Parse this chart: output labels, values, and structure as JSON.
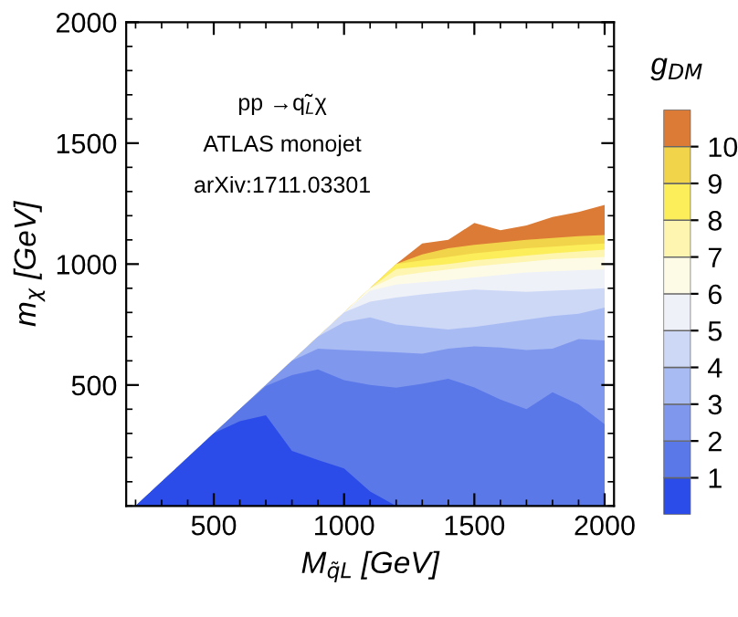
{
  "chart_data": {
    "type": "area",
    "xlabel": "M$_{q̃L}$ [GeV]",
    "ylabel": "m$_{χ}$ [GeV]",
    "legend_title": "g$_{DM}$",
    "annotations": [
      "pp →q̃$_{L}$χ",
      "ATLAS monojet",
      "arXiv:1711.03301"
    ],
    "x": [
      200,
      300,
      400,
      500,
      600,
      700,
      800,
      900,
      1000,
      1100,
      1200,
      1300,
      1400,
      1500,
      1600,
      1700,
      1800,
      1900,
      2000
    ],
    "series": [
      {
        "color": "#2b4ce8",
        "values": [
          0,
          100,
          200,
          300,
          350,
          375,
          228,
          190,
          155,
          60,
          0,
          0,
          0,
          0,
          0,
          0,
          0,
          0,
          0
        ]
      },
      {
        "color": "#5a78e8",
        "values": [
          0,
          100,
          200,
          300,
          400,
          496,
          541,
          564,
          520,
          500,
          489,
          505,
          526,
          490,
          440,
          400,
          470,
          420,
          338
        ]
      },
      {
        "color": "#7f98ee",
        "values": [
          0,
          100,
          200,
          300,
          400,
          500,
          600,
          650,
          645,
          640,
          635,
          630,
          650,
          660,
          655,
          645,
          650,
          690,
          684
        ]
      },
      {
        "color": "#a9bbf3",
        "values": [
          0,
          100,
          200,
          300,
          400,
          500,
          600,
          700,
          760,
          780,
          750,
          740,
          730,
          740,
          755,
          770,
          785,
          795,
          820
        ]
      },
      {
        "color": "#cdd8f7",
        "values": [
          0,
          100,
          200,
          300,
          400,
          500,
          600,
          700,
          800,
          845,
          862,
          875,
          885,
          895,
          890,
          885,
          890,
          895,
          900
        ]
      },
      {
        "color": "#eef1f8",
        "values": [
          0,
          100,
          200,
          300,
          400,
          500,
          600,
          700,
          800,
          890,
          915,
          925,
          933,
          945,
          955,
          965,
          970,
          975,
          978
        ]
      },
      {
        "color": "#fdfbe6",
        "values": [
          0,
          100,
          200,
          300,
          400,
          500,
          600,
          700,
          800,
          900,
          950,
          965,
          978,
          990,
          1000,
          1010,
          1020,
          1025,
          1030
        ]
      },
      {
        "color": "#fdf5b0",
        "values": [
          0,
          100,
          200,
          300,
          400,
          500,
          600,
          700,
          800,
          900,
          980,
          990,
          1000,
          1015,
          1025,
          1035,
          1045,
          1052,
          1060
        ]
      },
      {
        "color": "#fbee5a",
        "values": [
          0,
          100,
          200,
          300,
          400,
          500,
          600,
          700,
          800,
          900,
          1000,
          1015,
          1030,
          1045,
          1055,
          1065,
          1072,
          1080,
          1085
        ]
      },
      {
        "color": "#f2d44a",
        "values": [
          0,
          100,
          200,
          300,
          400,
          500,
          600,
          700,
          800,
          900,
          1000,
          1040,
          1065,
          1080,
          1090,
          1100,
          1108,
          1115,
          1120
        ]
      },
      {
        "color": "#dc7b35",
        "values": [
          0,
          100,
          200,
          300,
          400,
          500,
          600,
          700,
          800,
          900,
          1000,
          1085,
          1100,
          1170,
          1140,
          1160,
          1195,
          1215,
          1245
        ]
      }
    ],
    "xlim": [
      164,
      2036
    ],
    "ylim": [
      0,
      2000
    ],
    "xticks": [
      500,
      1000,
      1500,
      2000
    ],
    "yticks": [
      500,
      1000,
      1500,
      2000
    ],
    "clim": [
      0,
      11
    ],
    "cticks": [
      1,
      2,
      3,
      4,
      5,
      6,
      7,
      8,
      9,
      10
    ],
    "legend": false,
    "grid": false
  }
}
